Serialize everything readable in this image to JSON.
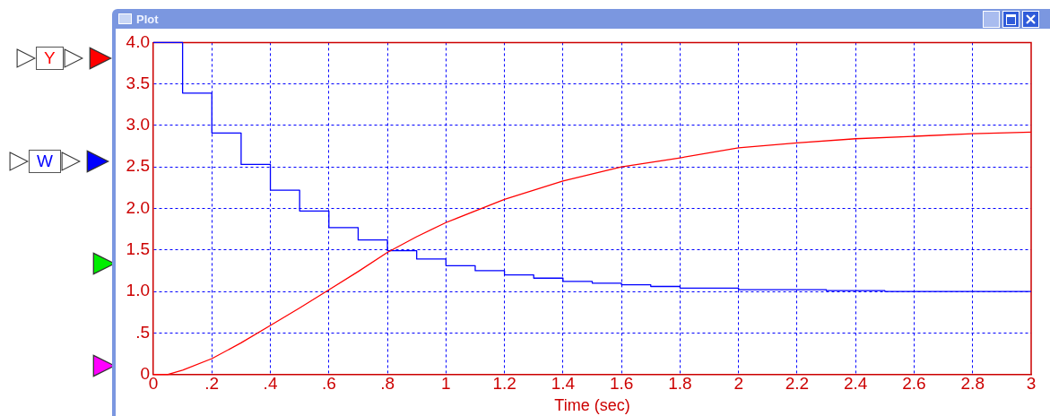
{
  "chart_data": {
    "type": "line",
    "title": "Plot",
    "xlabel": "Time (sec)",
    "legend": "left",
    "grid": true,
    "xlim": [
      0,
      3
    ],
    "ylim": [
      0,
      4
    ],
    "xticks": [
      0,
      {
        "value": 0.2,
        "label": ".2"
      },
      {
        "value": 0.4,
        "label": ".4"
      },
      {
        "value": 0.6,
        "label": ".6"
      },
      {
        "value": 0.8,
        "label": ".8"
      },
      1,
      1.2,
      1.4,
      1.6,
      1.8,
      2,
      2.2,
      2.4,
      2.6,
      2.8,
      3
    ],
    "yticks": [
      0,
      {
        "value": 0.5,
        "label": ".5"
      },
      {
        "value": 1,
        "label": "1.0"
      },
      1.5,
      {
        "value": 2,
        "label": "2.0"
      },
      2.5,
      {
        "value": 3,
        "label": "3.0"
      },
      3.5,
      {
        "value": 4,
        "label": "4.0"
      }
    ],
    "series": [
      {
        "name": "Y",
        "type": "line",
        "color": "#ff0000",
        "x": [
          0,
          0.05,
          0.1,
          0.2,
          0.3,
          0.4,
          0.5,
          0.6,
          0.7,
          0.8,
          0.9,
          1.0,
          1.2,
          1.4,
          1.6,
          1.8,
          2.0,
          2.2,
          2.4,
          2.6,
          2.8,
          3.0
        ],
        "values": [
          0,
          0,
          0.05,
          0.19,
          0.38,
          0.59,
          0.8,
          1.02,
          1.24,
          1.47,
          1.66,
          1.83,
          2.11,
          2.33,
          2.5,
          2.61,
          2.73,
          2.79,
          2.84,
          2.87,
          2.9,
          2.92
        ]
      },
      {
        "name": "W",
        "type": "step",
        "color": "#0000ff",
        "x": [
          0,
          0.1,
          0.2,
          0.3,
          0.4,
          0.5,
          0.6,
          0.7,
          0.8,
          0.9,
          1.0,
          1.1,
          1.2,
          1.3,
          1.4,
          1.5,
          1.6,
          1.7,
          1.8,
          1.9,
          2.0,
          2.1,
          2.2,
          2.3,
          2.4,
          2.5,
          3.0
        ],
        "values": [
          4,
          3.39,
          2.91,
          2.53,
          2.22,
          1.97,
          1.77,
          1.62,
          1.49,
          1.39,
          1.31,
          1.25,
          1.2,
          1.16,
          1.12,
          1.1,
          1.08,
          1.06,
          1.04,
          1.04,
          1.02,
          1.02,
          1.02,
          1.01,
          1.01,
          1,
          1
        ]
      }
    ]
  }
}
